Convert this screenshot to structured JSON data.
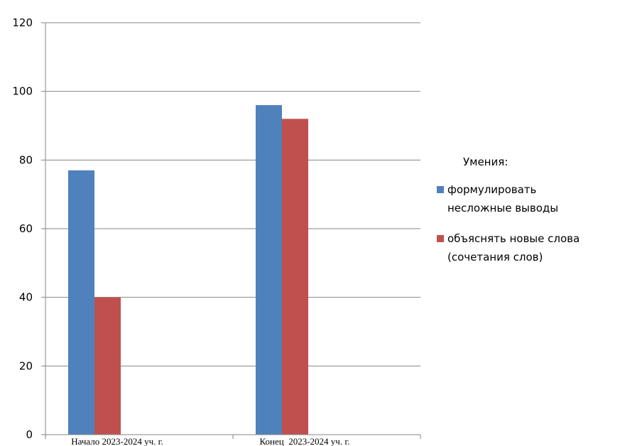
{
  "chart_data": {
    "type": "bar",
    "categories": [
      "Начало 2023-2024 уч. г.",
      "Конец  2023-2024 уч. г."
    ],
    "series": [
      {
        "name": "формулировать несложные выводы",
        "name_lines": [
          "формулировать",
          "несложные выводы"
        ],
        "values": [
          77,
          96
        ],
        "color": "#4f81bd"
      },
      {
        "name": "объяснять новые слова (сочетания слов)",
        "name_lines": [
          "объяснять новые слова",
          "(сочетания слов)"
        ],
        "values": [
          40,
          92
        ],
        "color": "#c0504d"
      }
    ],
    "ylim": [
      0,
      120
    ],
    "yticks": [
      0,
      20,
      40,
      60,
      80,
      100,
      120
    ],
    "title": "",
    "xlabel": "",
    "ylabel": "",
    "grid": true,
    "legend": {
      "title": "Умения:",
      "position": "right"
    },
    "gridline_color": "#868686",
    "axis_color": "#868686"
  }
}
